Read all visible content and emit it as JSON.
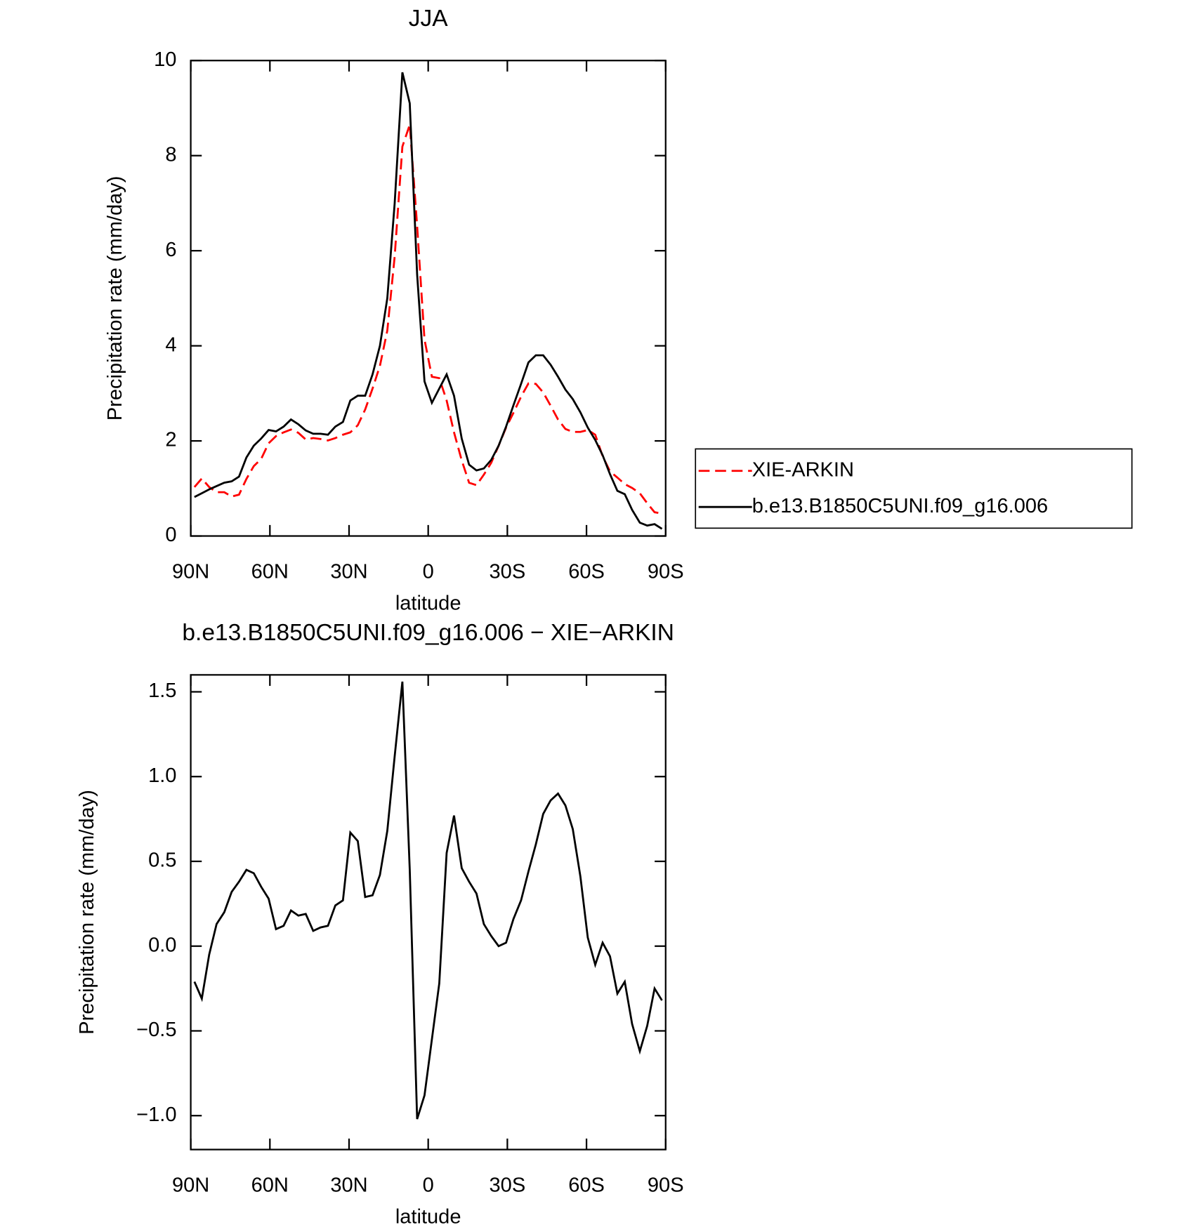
{
  "chart_data": [
    {
      "type": "line",
      "title": "JJA",
      "x_label": "latitude",
      "y_label": "Precipitation rate (mm/day)",
      "x": [
        88.6,
        85.8,
        83.0,
        80.2,
        77.3,
        74.5,
        71.7,
        68.9,
        66.1,
        63.3,
        60.5,
        57.7,
        54.8,
        52.0,
        49.2,
        46.4,
        43.6,
        40.8,
        38.0,
        35.2,
        32.3,
        29.5,
        26.7,
        23.9,
        21.1,
        18.3,
        15.5,
        12.7,
        9.8,
        7.0,
        4.2,
        1.4,
        -1.4,
        -4.2,
        -7.0,
        -9.8,
        -12.7,
        -15.5,
        -18.3,
        -21.1,
        -23.9,
        -26.7,
        -29.5,
        -32.3,
        -35.2,
        -38.0,
        -40.8,
        -43.6,
        -46.4,
        -49.2,
        -52.0,
        -54.8,
        -57.7,
        -60.5,
        -63.3,
        -66.1,
        -68.9,
        -71.7,
        -74.5,
        -77.3,
        -80.2,
        -83.0,
        -85.8,
        -88.6
      ],
      "series": [
        {
          "name": "XIE-ARKIN",
          "color": "#ff0000",
          "dash": "dashed",
          "values": [
            1.03,
            1.21,
            1.03,
            0.92,
            0.92,
            0.83,
            0.87,
            1.2,
            1.47,
            1.62,
            1.95,
            2.1,
            2.18,
            2.24,
            2.17,
            2.03,
            2.06,
            2.04,
            2.01,
            2.06,
            2.13,
            2.18,
            2.33,
            2.66,
            3.1,
            3.58,
            4.32,
            5.88,
            8.19,
            8.65,
            6.52,
            4.13,
            3.35,
            3.32,
            2.85,
            2.18,
            1.59,
            1.12,
            1.07,
            1.29,
            1.54,
            1.9,
            2.28,
            2.59,
            2.93,
            3.21,
            3.2,
            3.02,
            2.74,
            2.45,
            2.25,
            2.19,
            2.19,
            2.23,
            2.13,
            1.68,
            1.36,
            1.23,
            1.09,
            1.01,
            0.9,
            0.69,
            0.5,
            0.47
          ]
        },
        {
          "name": "b.e13.B1850C5UNI.f09_g16.006",
          "color": "#000000",
          "dash": "solid",
          "values": [
            0.82,
            0.9,
            0.98,
            1.05,
            1.12,
            1.15,
            1.25,
            1.65,
            1.9,
            2.05,
            2.23,
            2.2,
            2.3,
            2.45,
            2.35,
            2.22,
            2.15,
            2.15,
            2.13,
            2.3,
            2.4,
            2.85,
            2.95,
            2.95,
            3.4,
            4.0,
            5.0,
            7.0,
            9.75,
            9.1,
            5.5,
            3.25,
            2.8,
            3.1,
            3.4,
            2.95,
            2.05,
            1.5,
            1.38,
            1.42,
            1.6,
            1.9,
            2.3,
            2.75,
            3.2,
            3.65,
            3.8,
            3.8,
            3.6,
            3.35,
            3.08,
            2.88,
            2.6,
            2.28,
            2.02,
            1.7,
            1.3,
            0.95,
            0.88,
            0.55,
            0.28,
            0.22,
            0.25,
            0.15
          ]
        }
      ],
      "xlim": [
        90,
        -90
      ],
      "xticks": [
        {
          "value": 90,
          "label": "90N"
        },
        {
          "value": 60,
          "label": "60N"
        },
        {
          "value": 30,
          "label": "30N"
        },
        0,
        {
          "value": -30,
          "label": "30S"
        },
        {
          "value": -60,
          "label": "60S"
        },
        {
          "value": -90,
          "label": "90S"
        }
      ],
      "ylim": [
        0,
        10
      ],
      "yticks": [
        0,
        2,
        4,
        6,
        8,
        10
      ],
      "legend": "right"
    },
    {
      "type": "line",
      "title": "b.e13.B1850C5UNI.f09_g16.006 − XIE−ARKIN",
      "x_label": "latitude",
      "y_label": "Precipitation rate (mm/day)",
      "x": [
        88.6,
        85.8,
        83.0,
        80.2,
        77.3,
        74.5,
        71.7,
        68.9,
        66.1,
        63.3,
        60.5,
        57.7,
        54.8,
        52.0,
        49.2,
        46.4,
        43.6,
        40.8,
        38.0,
        35.2,
        32.3,
        29.5,
        26.7,
        23.9,
        21.1,
        18.3,
        15.5,
        12.7,
        9.8,
        7.0,
        4.2,
        1.4,
        -1.4,
        -4.2,
        -7.0,
        -9.8,
        -12.7,
        -15.5,
        -18.3,
        -21.1,
        -23.9,
        -26.7,
        -29.5,
        -32.3,
        -35.2,
        -38.0,
        -40.8,
        -43.6,
        -46.4,
        -49.2,
        -52.0,
        -54.8,
        -57.7,
        -60.5,
        -63.3,
        -66.1,
        -68.9,
        -71.7,
        -74.5,
        -77.3,
        -80.2,
        -83.0,
        -85.8,
        -88.6
      ],
      "color": "#000000",
      "values": [
        -0.21,
        -0.31,
        -0.05,
        0.13,
        0.2,
        0.32,
        0.38,
        0.45,
        0.43,
        0.35,
        0.28,
        0.1,
        0.12,
        0.21,
        0.18,
        0.19,
        0.09,
        0.11,
        0.12,
        0.24,
        0.27,
        0.67,
        0.62,
        0.29,
        0.3,
        0.42,
        0.68,
        1.12,
        1.56,
        0.45,
        -1.02,
        -0.88,
        -0.55,
        -0.22,
        0.55,
        0.77,
        0.46,
        0.38,
        0.31,
        0.13,
        0.06,
        0.0,
        0.02,
        0.16,
        0.27,
        0.44,
        0.6,
        0.78,
        0.86,
        0.9,
        0.83,
        0.69,
        0.41,
        0.05,
        -0.11,
        0.02,
        -0.06,
        -0.28,
        -0.21,
        -0.46,
        -0.62,
        -0.47,
        -0.25,
        -0.32
      ],
      "xlim": [
        90,
        -90
      ],
      "xticks": [
        {
          "value": 90,
          "label": "90N"
        },
        {
          "value": 60,
          "label": "60N"
        },
        {
          "value": 30,
          "label": "30N"
        },
        0,
        {
          "value": -30,
          "label": "30S"
        },
        {
          "value": -60,
          "label": "60S"
        },
        {
          "value": -90,
          "label": "90S"
        }
      ],
      "ylim": [
        -1.2,
        1.6
      ],
      "yticks": [
        {
          "value": -1.0,
          "label": "−1.0"
        },
        {
          "value": -0.5,
          "label": "−0.5"
        },
        {
          "value": 0.0,
          "label": "0.0"
        },
        0.5,
        {
          "value": 1.0,
          "label": "1.0"
        },
        1.5
      ]
    }
  ]
}
